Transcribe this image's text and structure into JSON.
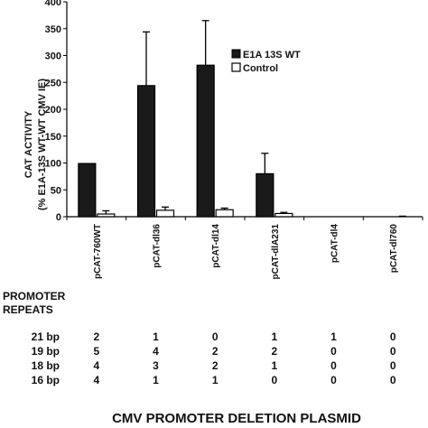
{
  "chart_data": {
    "type": "bar",
    "ylabel_line1": "CAT ACTIVITY",
    "ylabel_line2": "(% E1A-13S WT-WT CMV IE)",
    "xlabel": "CMV PROMOTER DELETION PLASMID",
    "ylim": [
      0,
      400
    ],
    "yticks": [
      0,
      50,
      100,
      150,
      200,
      250,
      300,
      350,
      400
    ],
    "categories": [
      "pCAT-760WT",
      "pCAT-dl36",
      "pCAT-dl14",
      "pCAT-dlA231",
      "pCAT-dl4",
      "pCAT-dl760"
    ],
    "series": [
      {
        "name": "E1A 13S WT",
        "color": "#1a1a1a",
        "values": [
          99,
          244,
          282,
          80,
          0,
          0
        ],
        "errors": [
          0,
          100,
          83,
          38,
          0,
          0
        ]
      },
      {
        "name": "Control",
        "color": "#ffffff",
        "values": [
          5,
          12,
          13,
          6,
          0,
          0
        ],
        "errors": [
          6,
          6,
          3,
          2,
          0,
          1
        ]
      }
    ],
    "legend_position": "top-right",
    "grid": false
  },
  "table": {
    "header_line1": "PROMOTER",
    "header_line2": "REPEATS",
    "rows": [
      {
        "label": "21 bp",
        "values": [
          "2",
          "1",
          "0",
          "1",
          "1",
          "0"
        ]
      },
      {
        "label": "19 bp",
        "values": [
          "5",
          "4",
          "2",
          "2",
          "0",
          "0"
        ]
      },
      {
        "label": "18 bp",
        "values": [
          "4",
          "3",
          "2",
          "1",
          "0",
          "0"
        ]
      },
      {
        "label": "16 bp",
        "values": [
          "4",
          "1",
          "1",
          "0",
          "0",
          "0"
        ]
      }
    ]
  }
}
